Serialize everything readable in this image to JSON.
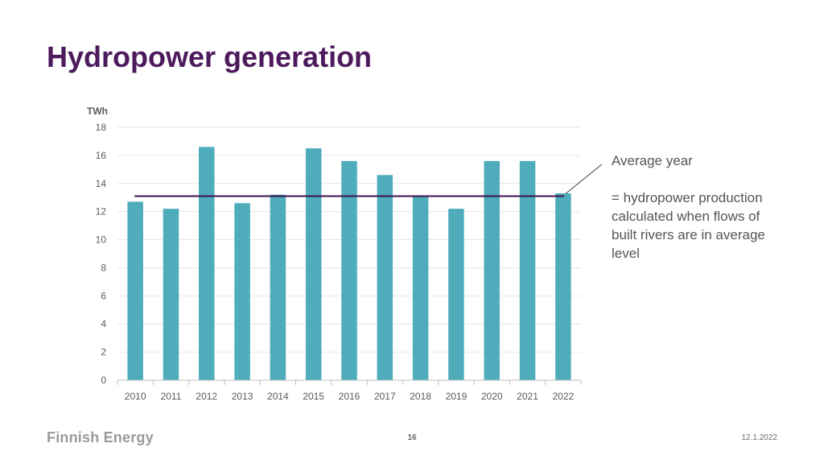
{
  "page": {
    "title": "Hydropower generation",
    "footer_logo": "Finnish Energy",
    "page_number": "16",
    "date": "12.1.2022"
  },
  "annotation": {
    "title": "Average year",
    "description": "= hydropower production calculated when flows of built rivers are in average level"
  },
  "chart_data": {
    "type": "bar",
    "title": "",
    "ylabel": "TWh",
    "xlabel": "",
    "categories": [
      "2010",
      "2011",
      "2012",
      "2013",
      "2014",
      "2015",
      "2016",
      "2017",
      "2018",
      "2019",
      "2020",
      "2021",
      "2022"
    ],
    "values": [
      12.7,
      12.2,
      16.6,
      12.6,
      13.2,
      16.5,
      15.6,
      14.6,
      13.1,
      12.2,
      15.6,
      15.6,
      13.3
    ],
    "ylim": [
      0,
      18
    ],
    "yticks": [
      0,
      2,
      4,
      6,
      8,
      10,
      12,
      14,
      16,
      18
    ],
    "average_line": 13.1,
    "grid": true,
    "colors": {
      "bar": "#4eacbb",
      "average": "#3d0f4f",
      "grid": "#e6e6e6",
      "axis": "#bfbfbf",
      "text": "#595959"
    }
  }
}
